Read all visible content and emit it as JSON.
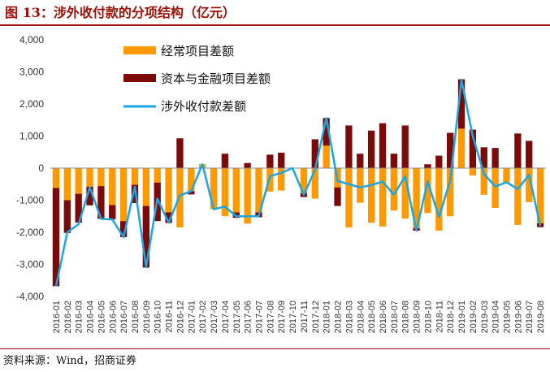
{
  "title": "图 13：涉外收付款的分项结构（亿元）",
  "source": "资料来源：Wind，招商证券",
  "colors": {
    "current": "#FF9900",
    "capital": "#7B0A0A",
    "line": "#1CA6DF",
    "accent": "#9C1006"
  },
  "chart_data": {
    "type": "bar",
    "stacked": true,
    "categories": [
      "2016-01",
      "2016-02",
      "2016-03",
      "2016-04",
      "2016-05",
      "2016-06",
      "2016-07",
      "2016-08",
      "2016-09",
      "2016-10",
      "2016-11",
      "2016-12",
      "2017-01",
      "2017-02",
      "2017-03",
      "2017-04",
      "2017-05",
      "2017-06",
      "2017-07",
      "2017-08",
      "2017-09",
      "2017-10",
      "2017-11",
      "2017-12",
      "2018-01",
      "2018-02",
      "2018-03",
      "2018-04",
      "2018-05",
      "2018-06",
      "2018-07",
      "2018-08",
      "2018-09",
      "2018-10",
      "2018-11",
      "2018-12",
      "2019-01",
      "2019-02",
      "2019-03",
      "2019-04",
      "2019-05",
      "2019-06",
      "2019-07",
      "2019-08"
    ],
    "series": [
      {
        "name": "经常项目差额",
        "type": "bar",
        "values": [
          -620,
          -1000,
          -800,
          -580,
          -560,
          -1150,
          -1650,
          -520,
          -1180,
          -450,
          -1380,
          -1850,
          -720,
          120,
          -1280,
          -1500,
          -1380,
          -1730,
          -1380,
          -730,
          -700,
          0,
          -780,
          -950,
          700,
          -600,
          -1850,
          -1080,
          -1700,
          -1820,
          -1320,
          -1570,
          -1870,
          -1400,
          -1950,
          -1500,
          1230,
          -230,
          -830,
          -1240,
          -450,
          -1770,
          -1060,
          -1720
        ],
        "ylim_color": "current"
      },
      {
        "name": "资本与金融项目差额",
        "type": "bar",
        "values": [
          -3060,
          -1020,
          -900,
          -580,
          -1020,
          -450,
          -500,
          -570,
          -1920,
          -1200,
          -330,
          930,
          -100,
          0,
          0,
          450,
          -170,
          160,
          -150,
          420,
          480,
          0,
          -120,
          900,
          860,
          -580,
          1330,
          450,
          1170,
          1400,
          450,
          1330,
          -80,
          120,
          390,
          1100,
          1540,
          1200,
          650,
          630,
          0,
          1080,
          850,
          -120
        ],
        "ylim_color": "capital"
      },
      {
        "name": "涉外收付款差额",
        "type": "line",
        "values": [
          -3680,
          -2000,
          -1750,
          -600,
          -1580,
          -1600,
          -2150,
          -580,
          -3090,
          -950,
          -1700,
          -850,
          -720,
          120,
          -1280,
          -1200,
          -1500,
          -1500,
          -1500,
          -250,
          -150,
          0,
          -830,
          -50,
          1560,
          -400,
          -500,
          -600,
          -530,
          -420,
          -830,
          -250,
          -1950,
          -420,
          -1520,
          -400,
          2750,
          1000,
          -180,
          -570,
          -440,
          -650,
          -210,
          -1800
        ]
      }
    ],
    "yticks": [
      "4,000",
      "3,000",
      "2,000",
      "1,000",
      "0",
      "-1,000",
      "-2,000",
      "-3,000",
      "-4,000"
    ],
    "ylim": [
      -4000,
      4000
    ],
    "xlabel": "",
    "ylabel": "",
    "grid": false,
    "legend": "top-left"
  }
}
